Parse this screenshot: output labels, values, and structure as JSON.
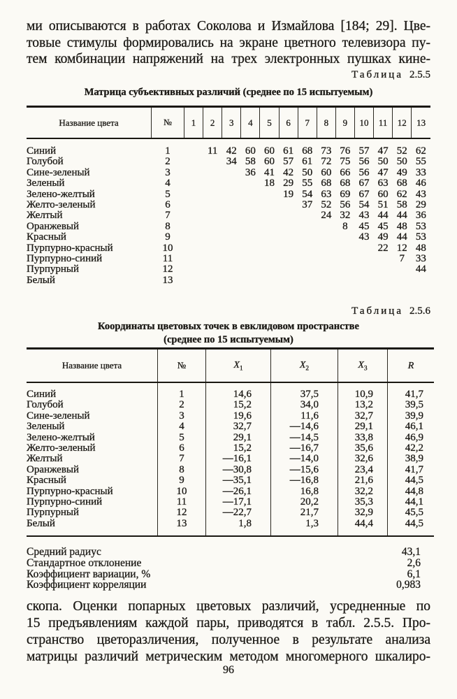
{
  "page": {
    "page_number": "96"
  },
  "paragraph_top": {
    "lines": [
      "ми описываются в работах Соколова и Измайлова [184; 29]. Цве-",
      "товые стимулы формировались на экране цветного телевизора пу-",
      "тем комбинации напряжений на трех электронных пушках кине-"
    ]
  },
  "table1": {
    "caption_word": "Таблица",
    "caption_number": "2.5.5",
    "title": "Матрица субъективных различий (среднее по 15 испытуемым)",
    "name_header": "Название цвета",
    "num_header": "№",
    "columns": [
      "1",
      "2",
      "3",
      "4",
      "5",
      "6",
      "7",
      "8",
      "9",
      "10",
      "11",
      "12",
      "13"
    ],
    "rows": [
      {
        "name": "Синий",
        "num": 1,
        "values": [
          11,
          42,
          60,
          60,
          61,
          68,
          73,
          76,
          57,
          47,
          52,
          62
        ]
      },
      {
        "name": "Голубой",
        "num": 2,
        "values": [
          34,
          58,
          60,
          57,
          61,
          72,
          75,
          56,
          50,
          50,
          55
        ]
      },
      {
        "name": "Сине-зеленый",
        "num": 3,
        "values": [
          36,
          41,
          42,
          50,
          60,
          66,
          56,
          47,
          49,
          33
        ]
      },
      {
        "name": "Зеленый",
        "num": 4,
        "values": [
          18,
          29,
          55,
          68,
          68,
          67,
          63,
          68,
          46
        ]
      },
      {
        "name": "Зелено-желтый",
        "num": 5,
        "values": [
          19,
          54,
          63,
          69,
          67,
          60,
          62,
          43
        ]
      },
      {
        "name": "Желто-зеленый",
        "num": 6,
        "values": [
          37,
          52,
          56,
          54,
          51,
          58,
          29
        ]
      },
      {
        "name": "Желтый",
        "num": 7,
        "values": [
          24,
          32,
          43,
          44,
          44,
          36
        ]
      },
      {
        "name": "Оранжевый",
        "num": 8,
        "values": [
          8,
          45,
          45,
          48,
          53
        ]
      },
      {
        "name": "Красный",
        "num": 9,
        "values": [
          43,
          49,
          44,
          53
        ]
      },
      {
        "name": "Пурпурно-красный",
        "num": 10,
        "values": [
          22,
          12,
          48
        ]
      },
      {
        "name": "Пурпурно-синий",
        "num": 11,
        "values": [
          7,
          33
        ]
      },
      {
        "name": "Пурпурный",
        "num": 12,
        "values": [
          44
        ]
      },
      {
        "name": "Белый",
        "num": 13,
        "values": []
      }
    ]
  },
  "table2": {
    "caption_word": "Таблица",
    "caption_number": "2.5.6",
    "title_line1": "Координаты цветовых точек в евклидовом пространстве",
    "title_line2": "(среднее по 15 испытуемым)",
    "columns": [
      {
        "text": "Название цвета"
      },
      {
        "text": "№"
      },
      {
        "text": "X",
        "sub": "1"
      },
      {
        "text": "X",
        "sub": "2"
      },
      {
        "text": "X",
        "sub": "3"
      },
      {
        "text": "R"
      }
    ],
    "rows": [
      {
        "name": "Синий",
        "num": "1",
        "x1": "14,6",
        "x2": "37,5",
        "x3": "10,9",
        "r": "41,7"
      },
      {
        "name": "Голубой",
        "num": "2",
        "x1": "15,2",
        "x2": "34,0",
        "x3": "13,2",
        "r": "39,5"
      },
      {
        "name": "Сине-зеленый",
        "num": "3",
        "x1": "19,6",
        "x2": "11,6",
        "x3": "32,7",
        "r": "39,9"
      },
      {
        "name": "Зеленый",
        "num": "4",
        "x1": "32,7",
        "x2": "—14,6",
        "x3": "29,1",
        "r": "46,1"
      },
      {
        "name": "Зелено-желтый",
        "num": "5",
        "x1": "29,1",
        "x2": "—14,5",
        "x3": "33,8",
        "r": "46,9"
      },
      {
        "name": "Желто-зеленый",
        "num": "6",
        "x1": "15,2",
        "x2": "—16,7",
        "x3": "35,6",
        "r": "42,2"
      },
      {
        "name": "Желтый",
        "num": "7",
        "x1": "—16,1",
        "x2": "—14,0",
        "x3": "32,6",
        "r": "38,9"
      },
      {
        "name": "Оранжевый",
        "num": "8",
        "x1": "—30,8",
        "x2": "—15,6",
        "x3": "23,4",
        "r": "41,7"
      },
      {
        "name": "Красный",
        "num": "9",
        "x1": "—35,1",
        "x2": "—16,8",
        "x3": "21,6",
        "r": "44,5"
      },
      {
        "name": "Пурпурно-красный",
        "num": "10",
        "x1": "—26,1",
        "x2": "16,8",
        "x3": "32,2",
        "r": "44,8"
      },
      {
        "name": "Пурпурно-синий",
        "num": "11",
        "x1": "—17,1",
        "x2": "20,2",
        "x3": "35,3",
        "r": "44,1"
      },
      {
        "name": "Пурпурный",
        "num": "12",
        "x1": "—22,7",
        "x2": "21,7",
        "x3": "32,9",
        "r": "45,5"
      },
      {
        "name": "Белый",
        "num": "13",
        "x1": "1,8",
        "x2": "1,3",
        "x3": "44,4",
        "r": "44,5"
      }
    ]
  },
  "stats": [
    {
      "label": "Средний радиус",
      "value": "43,1"
    },
    {
      "label": "Стандартное отклонение",
      "value": "2,6"
    },
    {
      "label": "Коэффициент вариации, %",
      "value": "6,1"
    },
    {
      "label": "Коэффициент корреляции",
      "value": "0,983"
    }
  ],
  "paragraph_bottom": {
    "lines": [
      "скопа. Оценки попарных цветовых различий, усредненные по",
      "15 предъявлениям каждой пары, приводятся в табл. 2.5.5. Про-",
      "странство цветоразличения, полученное в результате анализа",
      "матрицы различий метрическим методом многомерного шкалиро-"
    ]
  }
}
